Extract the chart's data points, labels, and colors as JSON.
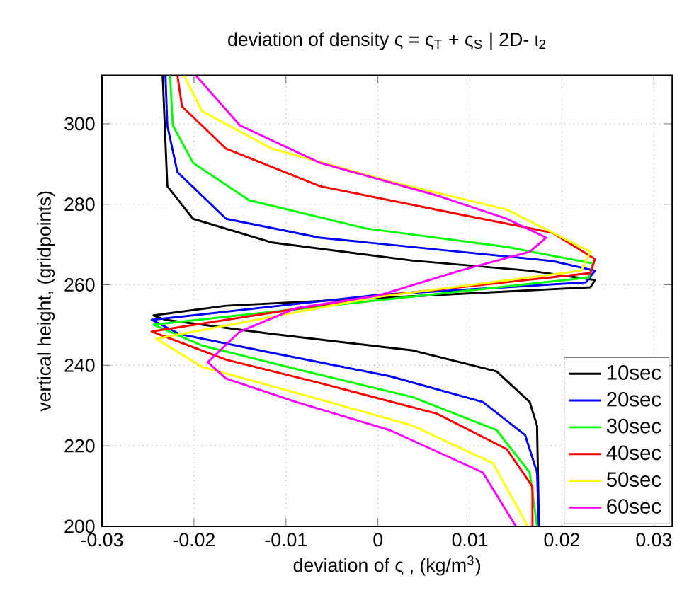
{
  "chart_data": {
    "type": "line",
    "title": "deviation of density  ς = ς$_{T}$ + ς$_{S}$  | 2D- ι$_{2}$",
    "xlabel": "deviation of ς ,  (kg/m$^{3}$)",
    "ylabel": "vertical height, (gridpoints)",
    "xlim": [
      -0.03,
      0.032
    ],
    "ylim": [
      200,
      312
    ],
    "xticks": [
      -0.03,
      -0.02,
      -0.01,
      0,
      0.01,
      0.02,
      0.03
    ],
    "yticks": [
      200,
      220,
      240,
      260,
      280,
      300
    ],
    "grid": true,
    "legend": "bottom right",
    "series": [
      {
        "name": "10sec",
        "color": "#000000",
        "x": [
          -0.0234,
          -0.0229,
          -0.0201,
          -0.0115,
          0.0038,
          0.0165,
          0.0236,
          0.0231,
          -0.0165,
          -0.0244,
          -0.0231,
          -0.0115,
          0.0038,
          0.0129,
          0.0165,
          0.0173,
          0.0175
        ],
        "values": [
          312,
          284.5,
          276.4,
          270.5,
          266,
          263.5,
          261.2,
          259.4,
          254.8,
          252.4,
          251.3,
          247.8,
          243.7,
          238.5,
          230.9,
          225,
          200
        ]
      },
      {
        "name": "20sec",
        "color": "#0000ff",
        "x": [
          -0.0231,
          -0.0229,
          -0.0218,
          -0.0165,
          -0.0063,
          0.0089,
          0.019,
          0.0236,
          0.0226,
          0,
          -0.0246,
          -0.0216,
          -0.0115,
          0.0013,
          0.0114,
          0.016,
          0.0173,
          0.0175
        ],
        "values": [
          312,
          299.6,
          288,
          276.4,
          271.7,
          268.2,
          265.9,
          263.5,
          260.6,
          257.5,
          251.3,
          247.8,
          243.1,
          237.3,
          230.9,
          222.7,
          213.4,
          200
        ]
      },
      {
        "name": "30sec",
        "color": "#00ff00",
        "x": [
          -0.0226,
          -0.0223,
          -0.0201,
          -0.014,
          -0.0013,
          0.014,
          0.0234,
          0.0229,
          -0.0244,
          -0.0191,
          -0.0089,
          0.0038,
          0.0129,
          0.0165,
          0.0173
        ],
        "values": [
          312,
          299.6,
          290.3,
          281,
          274,
          269.4,
          265.3,
          261.8,
          250.1,
          244.9,
          239.1,
          232.1,
          223.9,
          213.4,
          200
        ]
      },
      {
        "name": "40sec",
        "color": "#ff0000",
        "x": [
          -0.0218,
          -0.0213,
          -0.0165,
          -0.0063,
          0.0089,
          0.019,
          0.0236,
          0.0231,
          0,
          -0.0246,
          -0.0165,
          -0.0063,
          0.0064,
          0.014,
          0.0168,
          0.0168
        ],
        "values": [
          312,
          304.3,
          293.8,
          284.5,
          277.5,
          272.9,
          266.4,
          262.9,
          257.2,
          248.4,
          241.4,
          235.6,
          228,
          219.2,
          209.9,
          200
        ]
      },
      {
        "name": "50sec",
        "color": "#ffff00",
        "x": [
          -0.0211,
          -0.0191,
          -0.0115,
          0.0013,
          0.014,
          0.0231,
          0.0221,
          0,
          -0.0241,
          -0.0191,
          -0.0089,
          0.0038,
          0.0125,
          0.0163
        ],
        "values": [
          312,
          303.1,
          293.8,
          285.7,
          278.7,
          268.2,
          263.5,
          257,
          246.6,
          239.6,
          233.2,
          225,
          215.7,
          200
        ]
      },
      {
        "name": "60sec",
        "color": "#ff00ff",
        "x": [
          -0.0198,
          -0.015,
          -0.0063,
          0.0064,
          0.014,
          0.0183,
          0.0165,
          0.0089,
          0,
          -0.0089,
          -0.015,
          -0.0185,
          -0.0165,
          -0.0089,
          0.0013,
          0.0114,
          0.015
        ],
        "values": [
          312,
          299.6,
          290.3,
          282.2,
          276.4,
          271.7,
          268.2,
          263.5,
          257.3,
          254.2,
          248.4,
          240.8,
          236.7,
          230.9,
          223.9,
          213.4,
          200
        ]
      }
    ]
  }
}
